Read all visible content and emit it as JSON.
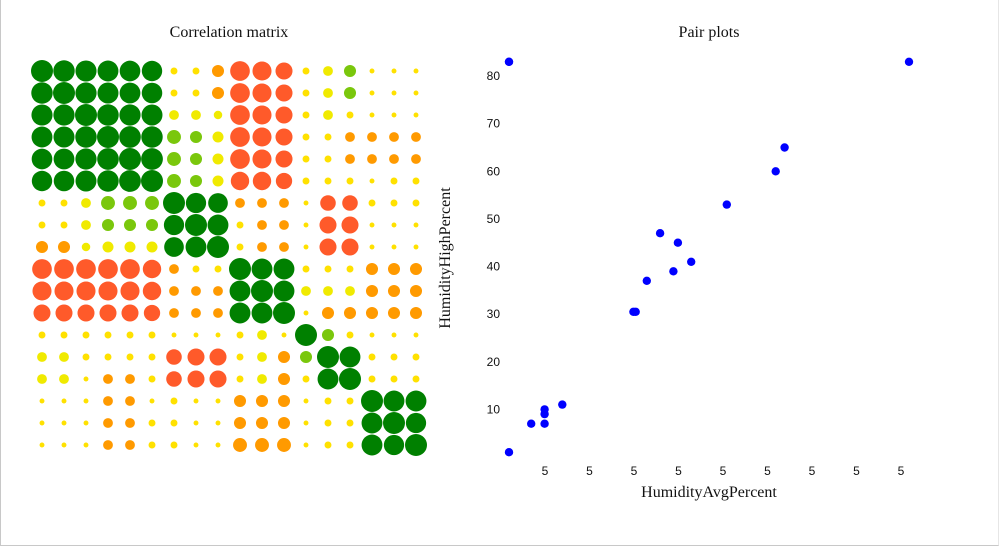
{
  "colors": {
    "positive_strong": "#008000",
    "positive_mid": "#7ac70c",
    "weak": "#f0ea00",
    "neutral": "#ffe100",
    "negative_mid": "#ff9a00",
    "negative_strong": "#ff5a2a",
    "scatter_point": "#0000ff"
  },
  "chart_data": [
    {
      "type": "heatmap",
      "title": "Correlation matrix",
      "size": 18,
      "matrix": [
        [
          1.0,
          0.95,
          0.92,
          0.9,
          0.88,
          0.86,
          0.1,
          0.1,
          -0.3,
          -0.8,
          -0.75,
          -0.6,
          0.1,
          0.2,
          0.3,
          0.05,
          0.05,
          0.05
        ],
        [
          0.95,
          1.0,
          0.93,
          0.91,
          0.89,
          0.87,
          0.1,
          0.1,
          -0.3,
          -0.8,
          -0.75,
          -0.6,
          0.1,
          0.2,
          0.3,
          0.05,
          0.05,
          0.05
        ],
        [
          0.92,
          0.93,
          1.0,
          0.95,
          0.93,
          0.91,
          0.2,
          0.2,
          0.15,
          -0.8,
          -0.75,
          -0.6,
          0.1,
          0.2,
          0.1,
          0.05,
          0.05,
          0.05
        ],
        [
          0.9,
          0.91,
          0.95,
          1.0,
          0.97,
          0.95,
          0.4,
          0.3,
          0.25,
          -0.8,
          -0.75,
          -0.6,
          0.1,
          0.1,
          -0.2,
          -0.2,
          -0.2,
          -0.2
        ],
        [
          0.88,
          0.89,
          0.93,
          0.97,
          1.0,
          0.98,
          0.4,
          0.3,
          0.25,
          -0.8,
          -0.75,
          -0.6,
          0.1,
          0.1,
          -0.2,
          -0.2,
          -0.2,
          -0.2
        ],
        [
          0.86,
          0.87,
          0.91,
          0.95,
          0.98,
          1.0,
          0.4,
          0.3,
          0.25,
          -0.7,
          -0.7,
          -0.55,
          0.1,
          0.1,
          0.1,
          0.05,
          0.1,
          0.1
        ],
        [
          0.1,
          0.1,
          0.2,
          0.4,
          0.4,
          0.4,
          1.0,
          0.85,
          0.8,
          -0.2,
          -0.2,
          -0.2,
          0.05,
          -0.5,
          -0.5,
          0.1,
          0.1,
          0.1
        ],
        [
          0.1,
          0.1,
          0.2,
          0.3,
          0.3,
          0.3,
          0.85,
          1.0,
          0.9,
          -0.1,
          -0.2,
          -0.2,
          0.05,
          -0.6,
          -0.6,
          0.05,
          0.05,
          0.05
        ],
        [
          -0.3,
          -0.3,
          0.15,
          0.25,
          0.25,
          0.25,
          0.8,
          0.9,
          1.0,
          0.1,
          -0.2,
          -0.2,
          0.05,
          -0.6,
          -0.6,
          0.05,
          0.05,
          0.05
        ],
        [
          -0.8,
          -0.8,
          -0.8,
          -0.8,
          -0.8,
          -0.7,
          -0.2,
          -0.1,
          0.1,
          1.0,
          0.9,
          0.9,
          0.1,
          0.1,
          0.1,
          -0.3,
          -0.3,
          -0.3
        ],
        [
          -0.75,
          -0.75,
          -0.75,
          -0.75,
          -0.75,
          -0.7,
          -0.2,
          -0.2,
          -0.2,
          0.9,
          1.0,
          0.9,
          0.2,
          0.2,
          0.2,
          -0.3,
          -0.3,
          -0.3
        ],
        [
          -0.6,
          -0.6,
          -0.6,
          -0.6,
          -0.6,
          -0.55,
          -0.2,
          -0.2,
          -0.2,
          0.9,
          0.9,
          1.0,
          0.05,
          -0.3,
          -0.3,
          -0.3,
          -0.3,
          -0.3
        ],
        [
          0.1,
          0.1,
          0.1,
          0.1,
          0.1,
          0.1,
          0.05,
          0.05,
          0.05,
          0.1,
          0.2,
          0.05,
          1.0,
          0.3,
          0.1,
          0.05,
          0.05,
          0.05
        ],
        [
          0.2,
          0.2,
          0.1,
          0.1,
          0.1,
          0.1,
          -0.5,
          -0.6,
          -0.6,
          0.1,
          0.2,
          -0.3,
          0.3,
          1.0,
          0.9,
          0.1,
          0.1,
          0.1
        ],
        [
          0.2,
          0.2,
          0.05,
          -0.2,
          -0.2,
          0.1,
          -0.5,
          -0.6,
          -0.6,
          0.1,
          0.2,
          -0.3,
          0.1,
          0.9,
          1.0,
          0.1,
          0.1,
          0.1
        ],
        [
          0.05,
          0.05,
          0.05,
          -0.2,
          -0.2,
          0.05,
          0.1,
          0.05,
          0.05,
          -0.3,
          -0.3,
          -0.3,
          0.05,
          0.1,
          0.1,
          1.0,
          0.9,
          0.9
        ],
        [
          0.05,
          0.05,
          0.05,
          -0.2,
          -0.2,
          0.1,
          0.1,
          0.05,
          0.05,
          -0.3,
          -0.3,
          -0.3,
          0.05,
          0.1,
          0.1,
          0.9,
          1.0,
          0.85
        ],
        [
          0.05,
          0.05,
          0.05,
          -0.2,
          -0.2,
          0.1,
          0.1,
          0.05,
          0.05,
          -0.4,
          -0.4,
          -0.4,
          0.05,
          0.1,
          0.1,
          0.9,
          0.85,
          1.0
        ]
      ]
    },
    {
      "type": "scatter",
      "title": "Pair plots",
      "xlabel": "HumidityAvgPercent",
      "ylabel": "HumidityHighPercent",
      "x_tick_labels": [
        "5",
        "5",
        "5",
        "5",
        "5",
        "5",
        "5",
        "5",
        "5"
      ],
      "y_ticks": [
        10,
        20,
        30,
        40,
        50,
        60,
        70,
        80
      ],
      "xlim": [
        0,
        90
      ],
      "ylim": [
        0,
        84
      ],
      "points": [
        {
          "x": 0,
          "y": 83
        },
        {
          "x": 0,
          "y": 83
        },
        {
          "x": 90,
          "y": 83
        },
        {
          "x": 62,
          "y": 65
        },
        {
          "x": 60,
          "y": 60
        },
        {
          "x": 49,
          "y": 53
        },
        {
          "x": 34,
          "y": 47
        },
        {
          "x": 38,
          "y": 45
        },
        {
          "x": 41,
          "y": 41
        },
        {
          "x": 37,
          "y": 39
        },
        {
          "x": 31,
          "y": 37
        },
        {
          "x": 28,
          "y": 30.5
        },
        {
          "x": 28.5,
          "y": 30.5
        },
        {
          "x": 12,
          "y": 11
        },
        {
          "x": 8,
          "y": 10
        },
        {
          "x": 8,
          "y": 9
        },
        {
          "x": 8,
          "y": 7
        },
        {
          "x": 5,
          "y": 7
        },
        {
          "x": 0,
          "y": 1
        }
      ]
    }
  ]
}
